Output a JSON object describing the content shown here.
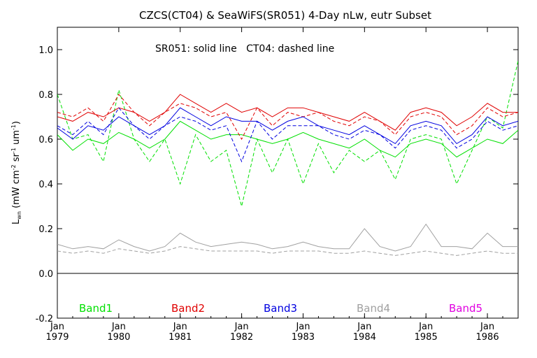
{
  "chart_data": {
    "type": "line",
    "title": "CZCS(CT04) & SeaWiFS(SR051) 4-Day nLw, eutr Subset",
    "annotation": "SR051: solid line   CT04: dashed line",
    "ylabel_main": "L",
    "ylabel_sub": "wn",
    "ylabel_units": " (mW cm",
    "ylabel_sup1": "-2",
    "ylabel_mid": " sr",
    "ylabel_sup2": "-1",
    "ylabel_um": " um",
    "ylabel_sup3": "-1",
    "ylabel_end": ")",
    "xlim": [
      1979.0,
      1986.5
    ],
    "ylim": [
      -0.2,
      1.1
    ],
    "y_ticks": [
      "-0.2",
      "0.0",
      "0.2",
      "0.4",
      "0.6",
      "0.8",
      "1.0"
    ],
    "y_tick_values": [
      -0.2,
      0.0,
      0.2,
      0.4,
      0.6,
      0.8,
      1.0
    ],
    "x_ticks": [
      {
        "value": 1979.0,
        "month": "Jan",
        "year": "1979"
      },
      {
        "value": 1980.0,
        "month": "Jan",
        "year": "1980"
      },
      {
        "value": 1981.0,
        "month": "Jan",
        "year": "1981"
      },
      {
        "value": 1982.0,
        "month": "Jan",
        "year": "1982"
      },
      {
        "value": 1983.0,
        "month": "Jan",
        "year": "1983"
      },
      {
        "value": 1984.0,
        "month": "Jan",
        "year": "1984"
      },
      {
        "value": 1985.0,
        "month": "Jan",
        "year": "1985"
      },
      {
        "value": 1986.0,
        "month": "Jan",
        "year": "1986"
      }
    ],
    "zero_line": 0.0,
    "legend": [
      "Band1",
      "Band2",
      "Band3",
      "Band4",
      "Band5"
    ],
    "colors": {
      "Band1": "#00e000",
      "Band2": "#e00000",
      "Band3": "#0000e0",
      "Band4": "#a0a0a0",
      "Band5": "#e000e0"
    },
    "series": [
      {
        "name": "Band1",
        "style": "solid",
        "x": [
          1979.0,
          1979.25,
          1979.5,
          1979.75,
          1980.0,
          1980.25,
          1980.5,
          1980.75,
          1981.0,
          1981.25,
          1981.5,
          1981.75,
          1982.0,
          1982.25,
          1982.5,
          1982.75,
          1983.0,
          1983.25,
          1983.5,
          1983.75,
          1984.0,
          1984.25,
          1984.5,
          1984.75,
          1985.0,
          1985.25,
          1985.5,
          1985.75,
          1986.0,
          1986.25,
          1986.5
        ],
        "y": [
          0.62,
          0.55,
          0.6,
          0.58,
          0.63,
          0.6,
          0.56,
          0.6,
          0.68,
          0.64,
          0.6,
          0.62,
          0.62,
          0.6,
          0.58,
          0.6,
          0.63,
          0.6,
          0.58,
          0.56,
          0.6,
          0.55,
          0.52,
          0.58,
          0.6,
          0.58,
          0.52,
          0.56,
          0.6,
          0.58,
          0.64
        ]
      },
      {
        "name": "Band1",
        "style": "dashed",
        "x": [
          1979.0,
          1979.25,
          1979.5,
          1979.75,
          1980.0,
          1980.25,
          1980.5,
          1980.75,
          1981.0,
          1981.25,
          1981.5,
          1981.75,
          1982.0,
          1982.25,
          1982.5,
          1982.75,
          1983.0,
          1983.25,
          1983.5,
          1983.75,
          1984.0,
          1984.25,
          1984.5,
          1984.75,
          1985.0,
          1985.25,
          1985.5,
          1985.75,
          1986.0,
          1986.25,
          1986.5
        ],
        "y": [
          0.8,
          0.6,
          0.62,
          0.5,
          0.82,
          0.6,
          0.5,
          0.6,
          0.4,
          0.62,
          0.5,
          0.55,
          0.3,
          0.6,
          0.45,
          0.6,
          0.4,
          0.58,
          0.45,
          0.55,
          0.5,
          0.55,
          0.42,
          0.6,
          0.62,
          0.6,
          0.4,
          0.55,
          0.7,
          0.65,
          0.95
        ]
      },
      {
        "name": "Band2",
        "style": "solid",
        "x": [
          1979.0,
          1979.25,
          1979.5,
          1979.75,
          1980.0,
          1980.25,
          1980.5,
          1980.75,
          1981.0,
          1981.25,
          1981.5,
          1981.75,
          1982.0,
          1982.25,
          1982.5,
          1982.75,
          1983.0,
          1983.25,
          1983.5,
          1983.75,
          1984.0,
          1984.25,
          1984.5,
          1984.75,
          1985.0,
          1985.25,
          1985.5,
          1985.75,
          1986.0,
          1986.25,
          1986.5
        ],
        "y": [
          0.7,
          0.68,
          0.72,
          0.7,
          0.74,
          0.72,
          0.68,
          0.72,
          0.8,
          0.76,
          0.72,
          0.76,
          0.72,
          0.74,
          0.7,
          0.74,
          0.74,
          0.72,
          0.7,
          0.68,
          0.72,
          0.68,
          0.64,
          0.72,
          0.74,
          0.72,
          0.66,
          0.7,
          0.76,
          0.72,
          0.72
        ]
      },
      {
        "name": "Band2",
        "style": "dashed",
        "x": [
          1979.0,
          1979.25,
          1979.5,
          1979.75,
          1980.0,
          1980.25,
          1980.5,
          1980.75,
          1981.0,
          1981.25,
          1981.5,
          1981.75,
          1982.0,
          1982.25,
          1982.5,
          1982.75,
          1983.0,
          1983.25,
          1983.5,
          1983.75,
          1984.0,
          1984.25,
          1984.5,
          1984.75,
          1985.0,
          1985.25,
          1985.5,
          1985.75,
          1986.0,
          1986.25,
          1986.5
        ],
        "y": [
          0.72,
          0.7,
          0.74,
          0.68,
          0.8,
          0.72,
          0.66,
          0.72,
          0.76,
          0.74,
          0.7,
          0.72,
          0.6,
          0.74,
          0.66,
          0.72,
          0.7,
          0.72,
          0.68,
          0.66,
          0.7,
          0.68,
          0.62,
          0.7,
          0.72,
          0.7,
          0.62,
          0.66,
          0.74,
          0.7,
          0.72
        ]
      },
      {
        "name": "Band3",
        "style": "solid",
        "x": [
          1979.0,
          1979.25,
          1979.5,
          1979.75,
          1980.0,
          1980.25,
          1980.5,
          1980.75,
          1981.0,
          1981.25,
          1981.5,
          1981.75,
          1982.0,
          1982.25,
          1982.5,
          1982.75,
          1983.0,
          1983.25,
          1983.5,
          1983.75,
          1984.0,
          1984.25,
          1984.5,
          1984.75,
          1985.0,
          1985.25,
          1985.5,
          1985.75,
          1986.0,
          1986.25,
          1986.5
        ],
        "y": [
          0.65,
          0.6,
          0.66,
          0.64,
          0.7,
          0.66,
          0.62,
          0.66,
          0.74,
          0.7,
          0.66,
          0.7,
          0.68,
          0.68,
          0.64,
          0.68,
          0.7,
          0.66,
          0.64,
          0.62,
          0.66,
          0.62,
          0.58,
          0.66,
          0.68,
          0.66,
          0.58,
          0.62,
          0.7,
          0.66,
          0.68
        ]
      },
      {
        "name": "Band3",
        "style": "dashed",
        "x": [
          1979.0,
          1979.25,
          1979.5,
          1979.75,
          1980.0,
          1980.25,
          1980.5,
          1980.75,
          1981.0,
          1981.25,
          1981.5,
          1981.75,
          1982.0,
          1982.25,
          1982.5,
          1982.75,
          1983.0,
          1983.25,
          1983.5,
          1983.75,
          1984.0,
          1984.25,
          1984.5,
          1984.75,
          1985.0,
          1985.25,
          1985.5,
          1985.75,
          1986.0,
          1986.25,
          1986.5
        ],
        "y": [
          0.66,
          0.62,
          0.68,
          0.62,
          0.74,
          0.66,
          0.6,
          0.66,
          0.7,
          0.68,
          0.64,
          0.66,
          0.5,
          0.68,
          0.6,
          0.66,
          0.66,
          0.66,
          0.62,
          0.6,
          0.64,
          0.62,
          0.56,
          0.64,
          0.66,
          0.64,
          0.56,
          0.6,
          0.68,
          0.64,
          0.66
        ]
      },
      {
        "name": "Band4",
        "style": "solid",
        "x": [
          1979.0,
          1979.25,
          1979.5,
          1979.75,
          1980.0,
          1980.25,
          1980.5,
          1980.75,
          1981.0,
          1981.25,
          1981.5,
          1981.75,
          1982.0,
          1982.25,
          1982.5,
          1982.75,
          1983.0,
          1983.25,
          1983.5,
          1983.75,
          1984.0,
          1984.25,
          1984.5,
          1984.75,
          1985.0,
          1985.25,
          1985.5,
          1985.75,
          1986.0,
          1986.25,
          1986.5
        ],
        "y": [
          0.13,
          0.11,
          0.12,
          0.11,
          0.15,
          0.12,
          0.1,
          0.12,
          0.18,
          0.14,
          0.12,
          0.13,
          0.14,
          0.13,
          0.11,
          0.12,
          0.14,
          0.12,
          0.11,
          0.11,
          0.2,
          0.12,
          0.1,
          0.12,
          0.22,
          0.12,
          0.12,
          0.11,
          0.18,
          0.12,
          0.12
        ]
      },
      {
        "name": "Band4",
        "style": "dashed",
        "x": [
          1979.0,
          1979.25,
          1979.5,
          1979.75,
          1980.0,
          1980.25,
          1980.5,
          1980.75,
          1981.0,
          1981.25,
          1981.5,
          1981.75,
          1982.0,
          1982.25,
          1982.5,
          1982.75,
          1983.0,
          1983.25,
          1983.5,
          1983.75,
          1984.0,
          1984.25,
          1984.5,
          1984.75,
          1985.0,
          1985.25,
          1985.5,
          1985.75,
          1986.0,
          1986.25,
          1986.5
        ],
        "y": [
          0.1,
          0.09,
          0.1,
          0.09,
          0.11,
          0.1,
          0.09,
          0.1,
          0.12,
          0.11,
          0.1,
          0.1,
          0.1,
          0.1,
          0.09,
          0.1,
          0.1,
          0.1,
          0.09,
          0.09,
          0.1,
          0.09,
          0.08,
          0.09,
          0.1,
          0.09,
          0.08,
          0.09,
          0.1,
          0.09,
          0.09
        ]
      }
    ]
  }
}
